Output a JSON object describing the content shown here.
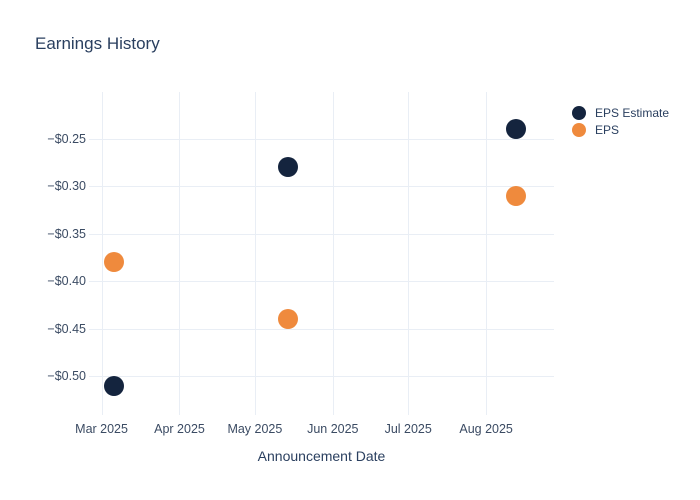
{
  "chart": {
    "title": "Earnings History",
    "xlabel": "Announcement Date"
  },
  "chart_data": {
    "type": "scatter",
    "title": "Earnings History",
    "xlabel": "Announcement Date",
    "ylabel": "",
    "grid": true,
    "legend_position": "right",
    "background": "#ffffff",
    "gridline_color": "#e9eef5",
    "text_color": "#2a3f5f",
    "x_ticks": [
      {
        "label": "Mar 2025",
        "date": "2025-03-01"
      },
      {
        "label": "Apr 2025",
        "date": "2025-04-01"
      },
      {
        "label": "May 2025",
        "date": "2025-05-01"
      },
      {
        "label": "Jun 2025",
        "date": "2025-06-01"
      },
      {
        "label": "Jul 2025",
        "date": "2025-07-01"
      },
      {
        "label": "Aug 2025",
        "date": "2025-08-01"
      }
    ],
    "y_ticks": [
      {
        "label": "−$0.25",
        "value": -0.25
      },
      {
        "label": "−$0.30",
        "value": -0.3
      },
      {
        "label": "−$0.35",
        "value": -0.35
      },
      {
        "label": "−$0.40",
        "value": -0.4
      },
      {
        "label": "−$0.45",
        "value": -0.45
      },
      {
        "label": "−$0.50",
        "value": -0.5
      }
    ],
    "xlim": [
      "2025-02-24",
      "2025-08-28"
    ],
    "ylim": [
      -0.541,
      -0.201
    ],
    "series": [
      {
        "name": "EPS Estimate",
        "color": "#14243e",
        "marker_size": 20,
        "points": [
          {
            "date": "2025-03-06",
            "value": -0.51
          },
          {
            "date": "2025-05-14",
            "value": -0.28
          },
          {
            "date": "2025-08-13",
            "value": -0.24
          }
        ]
      },
      {
        "name": "EPS",
        "color": "#ef8a3d",
        "marker_size": 20,
        "points": [
          {
            "date": "2025-03-06",
            "value": -0.38
          },
          {
            "date": "2025-05-14",
            "value": -0.44
          },
          {
            "date": "2025-08-13",
            "value": -0.31
          }
        ]
      }
    ]
  }
}
